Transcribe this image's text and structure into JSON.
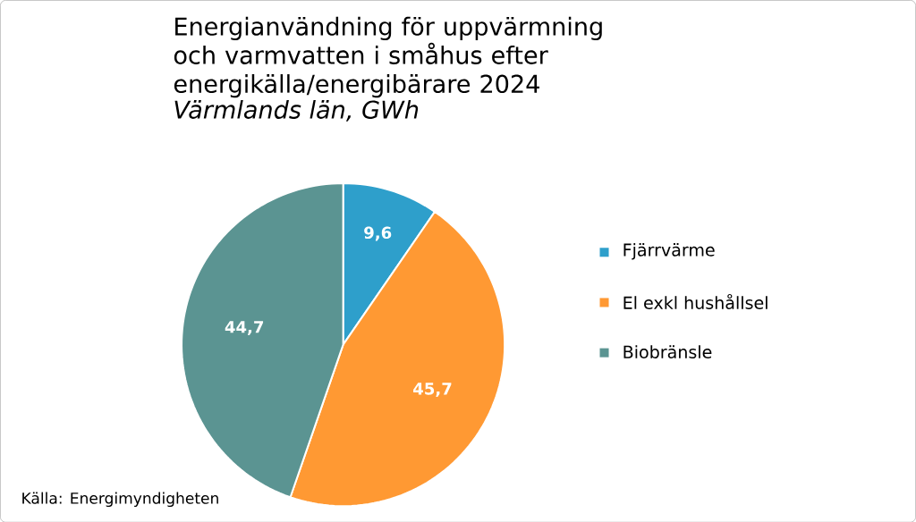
{
  "chart_data": {
    "type": "pie",
    "title": "Energianvändning för uppvärmning och varmvatten i småhus efter energikälla/energibärare 2024",
    "subtitle": "Värmlands län, GWh",
    "categories": [
      "Fjärrvärme",
      "El exkl hushållsel",
      "Biobränsle"
    ],
    "values": [
      9.6,
      45.7,
      44.7
    ],
    "colors": [
      "#2e9fcb",
      "#ff9933",
      "#5b9492"
    ],
    "value_labels": [
      "9,6",
      "45,7",
      "44,7"
    ],
    "legend": "right",
    "annotations": [
      "Källa: Energimyndigheten"
    ]
  }
}
